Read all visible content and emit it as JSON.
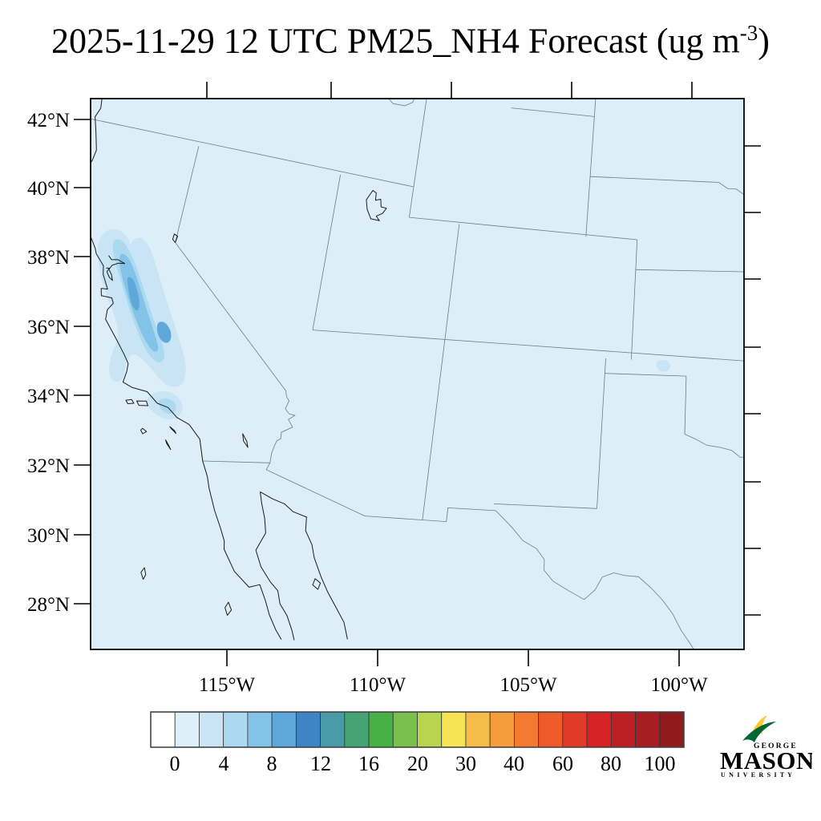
{
  "title": {
    "prefix": "2025-11-29 12 UTC PM25_NH4 Forecast (ug m",
    "exponent": "-3",
    "suffix": ")"
  },
  "map": {
    "x_tick_labels": [
      "115°W",
      "110°W",
      "105°W",
      "100°W"
    ],
    "y_tick_labels": [
      "42°N",
      "40°N",
      "38°N",
      "36°N",
      "34°N",
      "32°N",
      "30°N",
      "28°N"
    ],
    "background_color": "#deeef8",
    "coast_color": "#1a1a1a",
    "border_color": "#6b7b88",
    "frame_color": "#000000"
  },
  "colorbar": {
    "tick_labels": [
      "0",
      "4",
      "8",
      "12",
      "16",
      "20",
      "30",
      "40",
      "60",
      "80",
      "100"
    ],
    "boundary_values": [
      0,
      2,
      4,
      6,
      8,
      10,
      12,
      14,
      16,
      18,
      20,
      25,
      30,
      35,
      40,
      50,
      60,
      70,
      80,
      90,
      100
    ],
    "colors": [
      "#ffffff",
      "#deeef8",
      "#c9e5f5",
      "#abd9f0",
      "#83c3e8",
      "#5fa9da",
      "#3f85c6",
      "#4a9ba8",
      "#46a474",
      "#47b148",
      "#79c04d",
      "#b9d44e",
      "#f6e455",
      "#f5bc4a",
      "#f59d3d",
      "#f47a31",
      "#ee5a2a",
      "#e03b28",
      "#d62426",
      "#bc2025",
      "#a81d22",
      "#8f1b1d"
    ]
  },
  "logo": {
    "george": "GEORGE",
    "mason": "MASON",
    "university": "U N I V E R S I T Y",
    "green": "#006633",
    "gold": "#FFC72C"
  }
}
